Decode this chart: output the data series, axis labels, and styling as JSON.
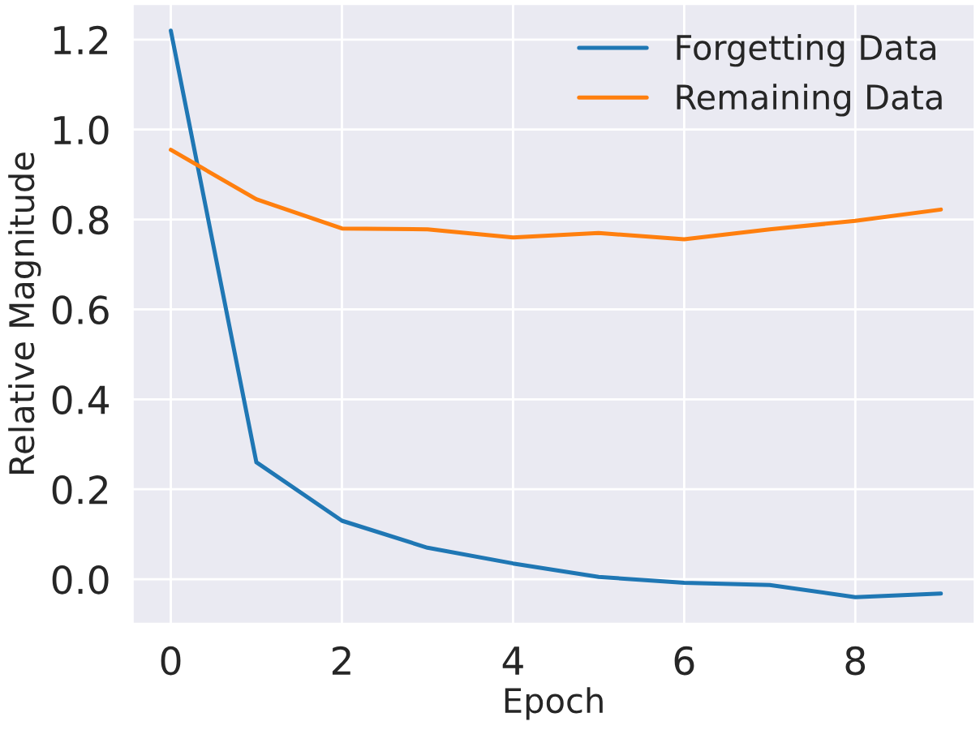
{
  "chart_data": {
    "type": "line",
    "xlabel": "Epoch",
    "ylabel": "Relative Magnitude",
    "x": [
      0,
      1,
      2,
      3,
      4,
      5,
      6,
      7,
      8,
      9
    ],
    "series": [
      {
        "name": "Forgetting Data",
        "color": "#1f77b4",
        "values": [
          1.22,
          0.26,
          0.13,
          0.07,
          0.035,
          0.005,
          -0.008,
          -0.013,
          -0.04,
          -0.032
        ]
      },
      {
        "name": "Remaining Data",
        "color": "#ff7f0e",
        "values": [
          0.955,
          0.845,
          0.78,
          0.778,
          0.76,
          0.77,
          0.756,
          0.778,
          0.797,
          0.822
        ]
      }
    ],
    "xlim": [
      -0.45,
      9.4
    ],
    "ylim": [
      -0.1,
      1.28
    ],
    "xticks": [
      0,
      2,
      4,
      6,
      8
    ],
    "yticks": [
      {
        "value": 0,
        "label": "0.0"
      },
      0.2,
      0.4,
      0.6,
      0.8,
      {
        "value": 1,
        "label": "1.0"
      },
      1.2
    ],
    "grid": true,
    "legend": "top right",
    "marker": "none",
    "line_style": "solid"
  }
}
